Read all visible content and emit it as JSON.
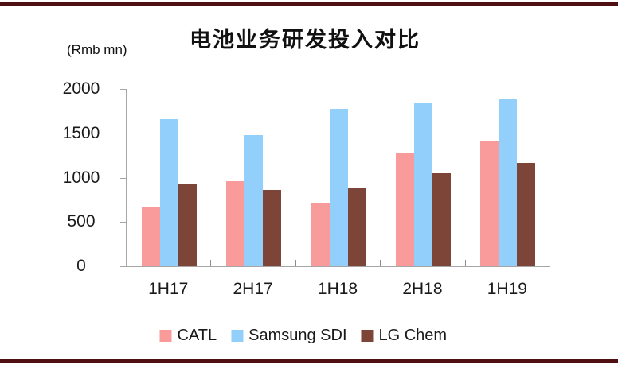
{
  "chart_data": {
    "type": "bar",
    "title": "电池业务研发投入对比",
    "unit_label": "(Rmb mn)",
    "categories": [
      "1H17",
      "2H17",
      "1H18",
      "2H18",
      "1H19"
    ],
    "series": [
      {
        "name": "CATL",
        "color": "#F99B9B",
        "values": [
          670,
          960,
          720,
          1270,
          1410
        ]
      },
      {
        "name": "Samsung SDI",
        "color": "#92CFFA",
        "values": [
          1660,
          1480,
          1780,
          1840,
          1890
        ]
      },
      {
        "name": "LG Chem",
        "color": "#7D4537",
        "values": [
          920,
          860,
          890,
          1050,
          1170
        ]
      }
    ],
    "ylim": [
      0,
      2000
    ],
    "yticks": [
      0,
      500,
      1000,
      1500,
      2000
    ],
    "grid": false,
    "legend_position": "bottom"
  },
  "colors": {
    "accent_border": "#500F12",
    "axis": "#A6A6A6",
    "text": "#1A1A1A"
  }
}
